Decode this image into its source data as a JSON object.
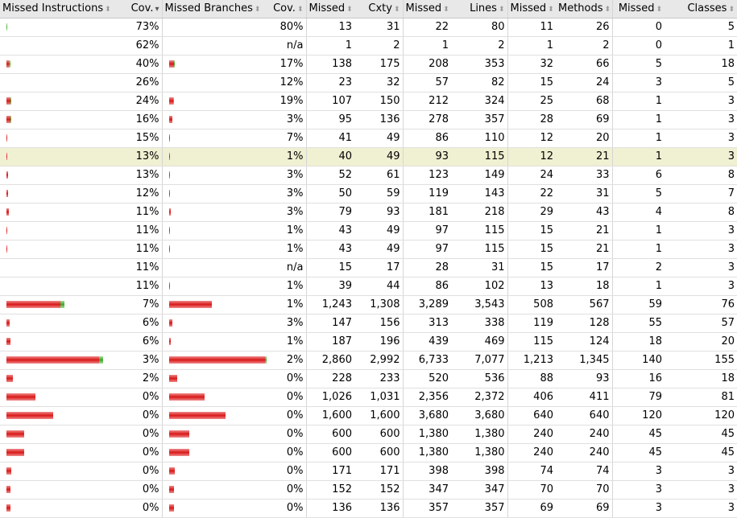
{
  "colors": {
    "missed": "#d81818",
    "covered": "#3ea42a",
    "header_bg": "#e8e8e8",
    "highlight": "#f0f0d2"
  },
  "columns": [
    {
      "label": "Missed Instructions",
      "sort_icon": "sortable-icon"
    },
    {
      "label": "Cov.",
      "sort_icon": "sort-descending-icon"
    },
    {
      "label": "Missed Branches",
      "sort_icon": "sortable-icon"
    },
    {
      "label": "Cov.",
      "sort_icon": "sortable-icon"
    },
    {
      "label": "Missed",
      "sort_icon": "sortable-icon"
    },
    {
      "label": "Cxty",
      "sort_icon": "sortable-icon"
    },
    {
      "label": "Missed",
      "sort_icon": "sortable-icon"
    },
    {
      "label": "Lines",
      "sort_icon": "sortable-icon"
    },
    {
      "label": "Missed",
      "sort_icon": "sortable-icon"
    },
    {
      "label": "Methods",
      "sort_icon": "sortable-icon"
    },
    {
      "label": "Missed",
      "sort_icon": "sortable-icon"
    },
    {
      "label": "Classes",
      "sort_icon": "sortable-icon"
    }
  ],
  "rows": [
    {
      "instr_bar": {
        "missed": 0,
        "covered": 0.008
      },
      "instr_cov": "73%",
      "branch_bar": null,
      "branch_cov": "80%",
      "cxty_missed": "13",
      "cxty": "31",
      "lines_missed": "22",
      "lines": "80",
      "methods_missed": "11",
      "methods": "26",
      "classes_missed": "0",
      "classes": "5"
    },
    {
      "instr_bar": null,
      "instr_cov": "62%",
      "branch_bar": null,
      "branch_cov": "n/a",
      "cxty_missed": "1",
      "cxty": "2",
      "lines_missed": "1",
      "lines": "2",
      "methods_missed": "1",
      "methods": "2",
      "classes_missed": "0",
      "classes": "1"
    },
    {
      "instr_bar": {
        "missed": 0.028,
        "covered": 0.015
      },
      "instr_cov": "40%",
      "branch_bar": {
        "missed": 0.05,
        "covered": 0.01
      },
      "branch_cov": "17%",
      "cxty_missed": "138",
      "cxty": "175",
      "lines_missed": "208",
      "lines": "353",
      "methods_missed": "32",
      "methods": "66",
      "classes_missed": "5",
      "classes": "18"
    },
    {
      "instr_bar": null,
      "instr_cov": "26%",
      "branch_bar": null,
      "branch_cov": "12%",
      "cxty_missed": "23",
      "cxty": "32",
      "lines_missed": "57",
      "lines": "82",
      "methods_missed": "15",
      "methods": "24",
      "classes_missed": "3",
      "classes": "5"
    },
    {
      "instr_bar": {
        "missed": 0.04,
        "covered": 0.01
      },
      "instr_cov": "24%",
      "branch_bar": {
        "missed": 0.04,
        "covered": 0.005
      },
      "branch_cov": "19%",
      "cxty_missed": "107",
      "cxty": "150",
      "lines_missed": "212",
      "lines": "324",
      "methods_missed": "25",
      "methods": "68",
      "classes_missed": "1",
      "classes": "3"
    },
    {
      "instr_bar": {
        "missed": 0.045,
        "covered": 0.008
      },
      "instr_cov": "16%",
      "branch_bar": {
        "missed": 0.03,
        "covered": 0
      },
      "branch_cov": "3%",
      "cxty_missed": "95",
      "cxty": "136",
      "lines_missed": "278",
      "lines": "357",
      "methods_missed": "28",
      "methods": "69",
      "classes_missed": "1",
      "classes": "3"
    },
    {
      "instr_bar": {
        "missed": 0.012,
        "covered": 0
      },
      "instr_cov": "15%",
      "branch_bar": {
        "missed": 0.01,
        "covered": 0
      },
      "branch_cov": "7%",
      "cxty_missed": "41",
      "cxty": "49",
      "lines_missed": "86",
      "lines": "110",
      "methods_missed": "12",
      "methods": "20",
      "classes_missed": "1",
      "classes": "3"
    },
    {
      "instr_bar": {
        "missed": 0.012,
        "covered": 0
      },
      "instr_cov": "13%",
      "branch_bar": {
        "missed": 0.01,
        "covered": 0
      },
      "branch_cov": "1%",
      "cxty_missed": "40",
      "cxty": "49",
      "lines_missed": "93",
      "lines": "115",
      "methods_missed": "12",
      "methods": "21",
      "classes_missed": "1",
      "classes": "3",
      "highlight": true
    },
    {
      "instr_bar": {
        "missed": 0.015,
        "covered": 0
      },
      "instr_cov": "13%",
      "branch_bar": {
        "missed": 0.01,
        "covered": 0
      },
      "branch_cov": "3%",
      "cxty_missed": "52",
      "cxty": "61",
      "lines_missed": "123",
      "lines": "149",
      "methods_missed": "24",
      "methods": "33",
      "classes_missed": "6",
      "classes": "8"
    },
    {
      "instr_bar": {
        "missed": 0.015,
        "covered": 0
      },
      "instr_cov": "12%",
      "branch_bar": {
        "missed": 0.01,
        "covered": 0
      },
      "branch_cov": "3%",
      "cxty_missed": "50",
      "cxty": "59",
      "lines_missed": "119",
      "lines": "143",
      "methods_missed": "22",
      "methods": "31",
      "classes_missed": "5",
      "classes": "7"
    },
    {
      "instr_bar": {
        "missed": 0.025,
        "covered": 0
      },
      "instr_cov": "11%",
      "branch_bar": {
        "missed": 0.02,
        "covered": 0
      },
      "branch_cov": "3%",
      "cxty_missed": "79",
      "cxty": "93",
      "lines_missed": "181",
      "lines": "218",
      "methods_missed": "29",
      "methods": "43",
      "classes_missed": "4",
      "classes": "8"
    },
    {
      "instr_bar": {
        "missed": 0.012,
        "covered": 0
      },
      "instr_cov": "11%",
      "branch_bar": {
        "missed": 0.01,
        "covered": 0
      },
      "branch_cov": "1%",
      "cxty_missed": "43",
      "cxty": "49",
      "lines_missed": "97",
      "lines": "115",
      "methods_missed": "15",
      "methods": "21",
      "classes_missed": "1",
      "classes": "3"
    },
    {
      "instr_bar": {
        "missed": 0.012,
        "covered": 0
      },
      "instr_cov": "11%",
      "branch_bar": {
        "missed": 0.01,
        "covered": 0
      },
      "branch_cov": "1%",
      "cxty_missed": "43",
      "cxty": "49",
      "lines_missed": "97",
      "lines": "115",
      "methods_missed": "15",
      "methods": "21",
      "classes_missed": "1",
      "classes": "3"
    },
    {
      "instr_bar": null,
      "instr_cov": "11%",
      "branch_bar": null,
      "branch_cov": "n/a",
      "cxty_missed": "15",
      "cxty": "17",
      "lines_missed": "28",
      "lines": "31",
      "methods_missed": "15",
      "methods": "17",
      "classes_missed": "2",
      "classes": "3"
    },
    {
      "instr_bar": null,
      "instr_cov": "11%",
      "branch_bar": {
        "missed": 0.01,
        "covered": 0
      },
      "branch_cov": "1%",
      "cxty_missed": "39",
      "cxty": "44",
      "lines_missed": "86",
      "lines": "102",
      "methods_missed": "13",
      "methods": "18",
      "classes_missed": "1",
      "classes": "3"
    },
    {
      "instr_bar": {
        "missed": 0.56,
        "covered": 0.04
      },
      "instr_cov": "7%",
      "branch_bar": {
        "missed": 0.44,
        "covered": 0
      },
      "branch_cov": "1%",
      "cxty_missed": "1,243",
      "cxty": "1,308",
      "lines_missed": "3,289",
      "lines": "3,543",
      "methods_missed": "508",
      "methods": "567",
      "classes_missed": "59",
      "classes": "76"
    },
    {
      "instr_bar": {
        "missed": 0.035,
        "covered": 0
      },
      "instr_cov": "6%",
      "branch_bar": {
        "missed": 0.03,
        "covered": 0
      },
      "branch_cov": "3%",
      "cxty_missed": "147",
      "cxty": "156",
      "lines_missed": "313",
      "lines": "338",
      "methods_missed": "119",
      "methods": "128",
      "classes_missed": "55",
      "classes": "57"
    },
    {
      "instr_bar": {
        "missed": 0.045,
        "covered": 0
      },
      "instr_cov": "6%",
      "branch_bar": {
        "missed": 0.015,
        "covered": 0
      },
      "branch_cov": "1%",
      "cxty_missed": "187",
      "cxty": "196",
      "lines_missed": "439",
      "lines": "469",
      "methods_missed": "115",
      "methods": "124",
      "classes_missed": "18",
      "classes": "20"
    },
    {
      "instr_bar": {
        "missed": 0.96,
        "covered": 0.04
      },
      "instr_cov": "3%",
      "branch_bar": {
        "missed": 1.0,
        "covered": 0.02
      },
      "branch_cov": "2%",
      "cxty_missed": "2,860",
      "cxty": "2,992",
      "lines_missed": "6,733",
      "lines": "7,077",
      "methods_missed": "1,213",
      "methods": "1,345",
      "classes_missed": "140",
      "classes": "155"
    },
    {
      "instr_bar": {
        "missed": 0.07,
        "covered": 0
      },
      "instr_cov": "2%",
      "branch_bar": {
        "missed": 0.08,
        "covered": 0
      },
      "branch_cov": "0%",
      "cxty_missed": "228",
      "cxty": "233",
      "lines_missed": "520",
      "lines": "536",
      "methods_missed": "88",
      "methods": "93",
      "classes_missed": "16",
      "classes": "18"
    },
    {
      "instr_bar": {
        "missed": 0.3,
        "covered": 0
      },
      "instr_cov": "0%",
      "branch_bar": {
        "missed": 0.37,
        "covered": 0
      },
      "branch_cov": "0%",
      "cxty_missed": "1,026",
      "cxty": "1,031",
      "lines_missed": "2,356",
      "lines": "2,372",
      "methods_missed": "406",
      "methods": "411",
      "classes_missed": "79",
      "classes": "81"
    },
    {
      "instr_bar": {
        "missed": 0.48,
        "covered": 0
      },
      "instr_cov": "0%",
      "branch_bar": {
        "missed": 0.58,
        "covered": 0
      },
      "branch_cov": "0%",
      "cxty_missed": "1,600",
      "cxty": "1,600",
      "lines_missed": "3,680",
      "lines": "3,680",
      "methods_missed": "640",
      "methods": "640",
      "classes_missed": "120",
      "classes": "120"
    },
    {
      "instr_bar": {
        "missed": 0.18,
        "covered": 0
      },
      "instr_cov": "0%",
      "branch_bar": {
        "missed": 0.21,
        "covered": 0
      },
      "branch_cov": "0%",
      "cxty_missed": "600",
      "cxty": "600",
      "lines_missed": "1,380",
      "lines": "1,380",
      "methods_missed": "240",
      "methods": "240",
      "classes_missed": "45",
      "classes": "45"
    },
    {
      "instr_bar": {
        "missed": 0.18,
        "covered": 0
      },
      "instr_cov": "0%",
      "branch_bar": {
        "missed": 0.21,
        "covered": 0
      },
      "branch_cov": "0%",
      "cxty_missed": "600",
      "cxty": "600",
      "lines_missed": "1,380",
      "lines": "1,380",
      "methods_missed": "240",
      "methods": "240",
      "classes_missed": "45",
      "classes": "45"
    },
    {
      "instr_bar": {
        "missed": 0.05,
        "covered": 0
      },
      "instr_cov": "0%",
      "branch_bar": {
        "missed": 0.06,
        "covered": 0
      },
      "branch_cov": "0%",
      "cxty_missed": "171",
      "cxty": "171",
      "lines_missed": "398",
      "lines": "398",
      "methods_missed": "74",
      "methods": "74",
      "classes_missed": "3",
      "classes": "3"
    },
    {
      "instr_bar": {
        "missed": 0.045,
        "covered": 0
      },
      "instr_cov": "0%",
      "branch_bar": {
        "missed": 0.05,
        "covered": 0
      },
      "branch_cov": "0%",
      "cxty_missed": "152",
      "cxty": "152",
      "lines_missed": "347",
      "lines": "347",
      "methods_missed": "70",
      "methods": "70",
      "classes_missed": "3",
      "classes": "3"
    },
    {
      "instr_bar": {
        "missed": 0.045,
        "covered": 0
      },
      "instr_cov": "0%",
      "branch_bar": {
        "missed": 0.05,
        "covered": 0
      },
      "branch_cov": "0%",
      "cxty_missed": "136",
      "cxty": "136",
      "lines_missed": "357",
      "lines": "357",
      "methods_missed": "69",
      "methods": "69",
      "classes_missed": "3",
      "classes": "3"
    }
  ]
}
